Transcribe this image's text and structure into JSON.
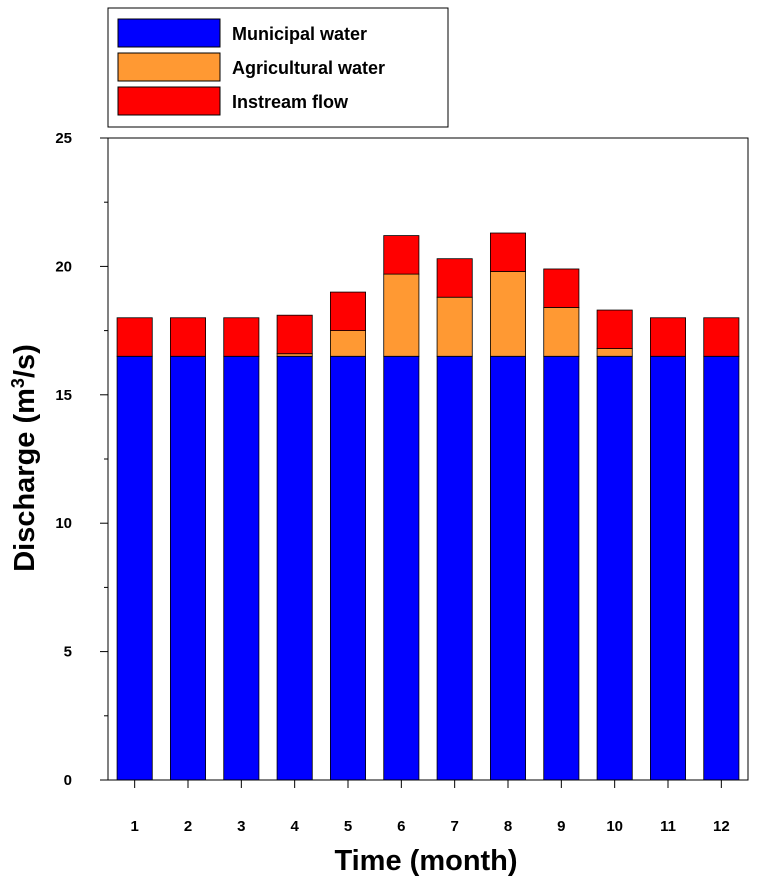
{
  "chart_data": {
    "type": "bar",
    "stacked": true,
    "categories": [
      "1",
      "2",
      "3",
      "4",
      "5",
      "6",
      "7",
      "8",
      "9",
      "10",
      "11",
      "12"
    ],
    "series": [
      {
        "name": "Municipal water",
        "color": "#0000ff",
        "values": [
          16.5,
          16.5,
          16.5,
          16.5,
          16.5,
          16.5,
          16.5,
          16.5,
          16.5,
          16.5,
          16.5,
          16.5
        ]
      },
      {
        "name": "Agricultural water",
        "color": "#ff9933",
        "values": [
          0,
          0,
          0,
          0.1,
          1.0,
          3.2,
          2.3,
          3.3,
          1.9,
          0.3,
          0,
          0
        ]
      },
      {
        "name": "Instream flow",
        "color": "#ff0000",
        "values": [
          1.5,
          1.5,
          1.5,
          1.5,
          1.5,
          1.5,
          1.5,
          1.5,
          1.5,
          1.5,
          1.5,
          1.5
        ]
      }
    ],
    "xlabel": "Time (month)",
    "ylabel_main": "Discharge (m",
    "ylabel_sup": "3",
    "ylabel_end": "/s)",
    "ylim": [
      0,
      25
    ],
    "yticks": [
      "0",
      "5",
      "10",
      "15",
      "20",
      "25"
    ],
    "grid": false,
    "legend_position": "top-left"
  }
}
